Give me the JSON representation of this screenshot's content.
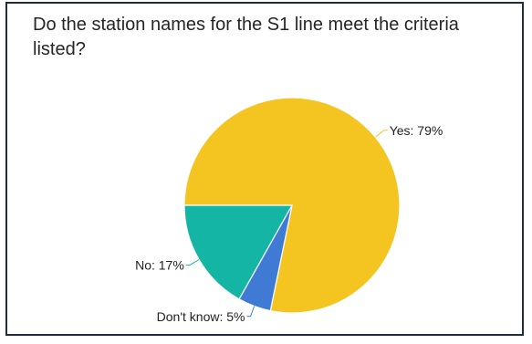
{
  "chart_data": {
    "type": "pie",
    "title": "Do the station names for the S1 line meet the criteria listed?",
    "slices": [
      {
        "label": "Yes",
        "value": 79,
        "display": "Yes: 79%",
        "color": "#f4c521"
      },
      {
        "label": "Don't know",
        "value": 5,
        "display": "Don't know: 5%",
        "color": "#3f7bd5"
      },
      {
        "label": "No",
        "value": 17,
        "display": "No: 17%",
        "color": "#14b5a4"
      }
    ],
    "legend": "none",
    "labels": "outside-with-leader-lines"
  }
}
